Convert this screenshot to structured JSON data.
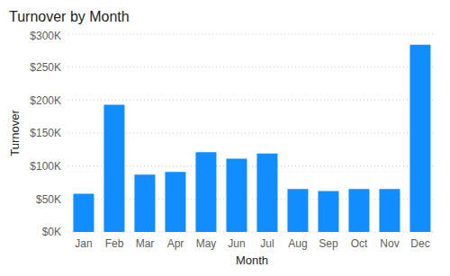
{
  "chart_data": {
    "type": "bar",
    "title": "Turnover by Month",
    "x_label": "Month",
    "y_label": "Turnover",
    "categories": [
      "Jan",
      "Feb",
      "Mar",
      "Apr",
      "May",
      "Jun",
      "Jul",
      "Aug",
      "Sep",
      "Oct",
      "Nov",
      "Dec"
    ],
    "values": [
      58000,
      193000,
      87000,
      91000,
      121000,
      111000,
      119000,
      65000,
      62000,
      65000,
      65000,
      284000
    ],
    "color": "#118dff",
    "ylim": [
      0,
      300000
    ],
    "yticks": [
      {
        "value": 0,
        "label": "$0K"
      },
      {
        "value": 50000,
        "label": "$50K"
      },
      {
        "value": 100000,
        "label": "$100K"
      },
      {
        "value": 150000,
        "label": "$150K"
      },
      {
        "value": 200000,
        "label": "$200K"
      },
      {
        "value": 250000,
        "label": "$250K"
      },
      {
        "value": 300000,
        "label": "$300K"
      }
    ],
    "grid": true
  }
}
